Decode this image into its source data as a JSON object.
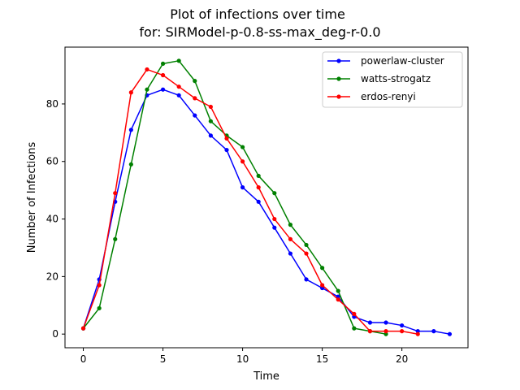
{
  "chart_data": {
    "type": "line",
    "title": "Plot of infections over time",
    "subtitle": "for: SIRModel-p-0.8-ss-max_deg-r-0.0",
    "xlabel": "Time",
    "ylabel": "Number of Infections",
    "xlim": [
      -1.15,
      24.15
    ],
    "ylim": [
      -4.75,
      99.75
    ],
    "xticks": [
      0,
      5,
      10,
      15,
      20
    ],
    "yticks": [
      0,
      20,
      40,
      60,
      80
    ],
    "grid": false,
    "legend_position": "top-right",
    "series": [
      {
        "name": "powerlaw-cluster",
        "color": "#0000ff",
        "x": [
          0,
          1,
          2,
          3,
          4,
          5,
          6,
          7,
          8,
          9,
          10,
          11,
          12,
          13,
          14,
          15,
          16,
          17,
          18,
          19,
          20,
          21,
          22,
          23
        ],
        "y": [
          2,
          19,
          46,
          71,
          83,
          85,
          83,
          76,
          69,
          64,
          51,
          46,
          37,
          28,
          19,
          16,
          13,
          6,
          4,
          4,
          3,
          1,
          1,
          0
        ]
      },
      {
        "name": "watts-strogatz",
        "color": "#008000",
        "x": [
          0,
          1,
          2,
          3,
          4,
          5,
          6,
          7,
          8,
          9,
          10,
          11,
          12,
          13,
          14,
          15,
          16,
          17,
          18,
          19
        ],
        "y": [
          2,
          9,
          33,
          59,
          85,
          94,
          95,
          88,
          74,
          69,
          65,
          55,
          49,
          38,
          31,
          23,
          15,
          2,
          1,
          0
        ]
      },
      {
        "name": "erdos-renyi",
        "color": "#ff0000",
        "x": [
          0,
          1,
          2,
          3,
          4,
          5,
          6,
          7,
          8,
          9,
          10,
          11,
          12,
          13,
          14,
          15,
          16,
          17,
          18,
          19,
          20,
          21
        ],
        "y": [
          2,
          17,
          49,
          84,
          92,
          90,
          86,
          82,
          79,
          68,
          60,
          51,
          40,
          33,
          28,
          17,
          12,
          7,
          1,
          1,
          1,
          0
        ]
      }
    ]
  }
}
